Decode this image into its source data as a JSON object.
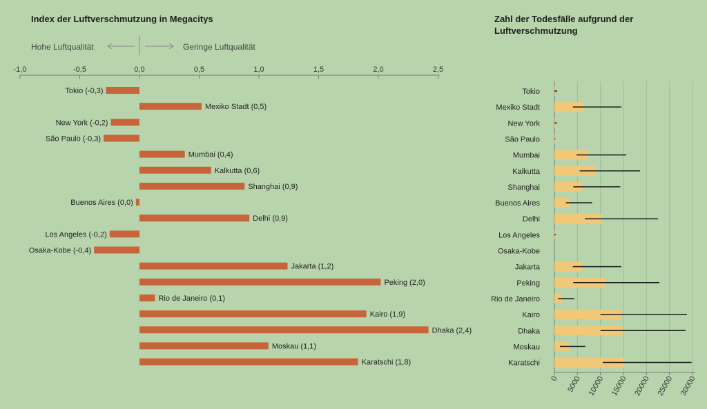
{
  "left_panel": {
    "title": "Index der Luftverschmutzung in Megacitys",
    "hint_left": "Hohe Luftqualität",
    "hint_right": "Geringe Luftqualität"
  },
  "right_panel": {
    "title_line1": "Zahl der Todesfälle aufgrund der",
    "title_line2": "Luftverschmutzung"
  },
  "colors": {
    "index_bar": "#c8643a",
    "death_bar": "#f0c878",
    "whisker": "#1a1a1a",
    "background": "#b8d4ad"
  },
  "chart_data": [
    {
      "type": "bar",
      "orientation": "horizontal",
      "title": "Index der Luftverschmutzung in Megacitys",
      "xlim": [
        -1.0,
        2.5
      ],
      "xticks": [
        "-1,0",
        "-0,5",
        "0,0",
        "0,5",
        "1,0",
        "1,5",
        "2,0",
        "2,5"
      ],
      "tick_values": [
        -1.0,
        -0.5,
        0.0,
        0.5,
        1.0,
        1.5,
        2.0,
        2.5
      ],
      "categories": [
        "Tokio (-0,3)",
        "Mexiko Stadt (0,5)",
        "New York (-0,2)",
        "São Paulo (-0,3)",
        "Mumbai (0,4)",
        "Kalkutta (0,6)",
        "Shanghai (0,9)",
        "Buenos Aires (0,0)",
        "Delhi (0,9)",
        "Los Angeles (-0,2)",
        "Osaka-Kobe (-0,4)",
        "Jakarta (1,2)",
        "Peking (2,0)",
        "Rio de Janeiro (0,1)",
        "Kairo (1,9)",
        "Dhaka (2,4)",
        "Moskau (1,1)",
        "Karatschi (1,8)"
      ],
      "values": [
        -0.28,
        0.52,
        -0.24,
        -0.3,
        0.38,
        0.6,
        0.88,
        -0.03,
        0.92,
        -0.25,
        -0.38,
        1.24,
        2.02,
        0.13,
        1.9,
        2.42,
        1.08,
        1.83
      ],
      "grid": false
    },
    {
      "type": "bar",
      "orientation": "horizontal",
      "title": "Zahl der Todesfälle aufgrund der Luftverschmutzung",
      "xlim": [
        0,
        30000
      ],
      "xticks": [
        "0",
        "5000",
        "10000",
        "15000",
        "20000",
        "25000",
        "30000"
      ],
      "tick_values": [
        0,
        5000,
        10000,
        15000,
        20000,
        25000,
        30000
      ],
      "grid": true,
      "categories": [
        "Tokio",
        "Mexiko Stadt",
        "New York",
        "São Paulo",
        "Mumbai",
        "Kalkutta",
        "Shanghai",
        "Buenos Aires",
        "Delhi",
        "Los Angeles",
        "Osaka-Kobe",
        "Jakarta",
        "Peking",
        "Rio de Janeiro",
        "Kairo",
        "Dhaka",
        "Moskau",
        "Karatschi"
      ],
      "values": [
        200,
        6300,
        200,
        100,
        7300,
        9000,
        6100,
        3400,
        10200,
        100,
        0,
        6100,
        11200,
        1600,
        14600,
        14800,
        3200,
        15100
      ],
      "range_low": [
        0,
        4000,
        0,
        0,
        4800,
        5500,
        4100,
        2500,
        6600,
        0,
        0,
        4000,
        4100,
        800,
        10000,
        10000,
        1200,
        10500
      ],
      "range_high": [
        600,
        14500,
        500,
        200,
        15600,
        18600,
        14300,
        8200,
        22500,
        300,
        0,
        14500,
        22800,
        4300,
        28800,
        28500,
        6700,
        29800
      ]
    }
  ]
}
